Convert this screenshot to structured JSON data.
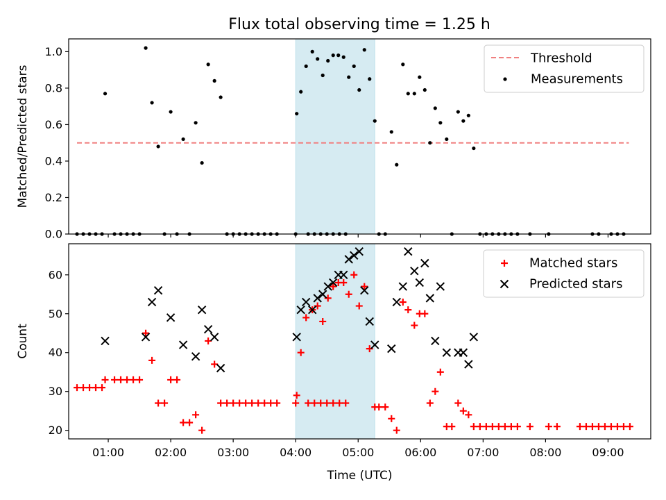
{
  "chart_data": [
    {
      "type": "scatter",
      "title": "Flux total observing time = 1.25 h",
      "xlabel": "",
      "ylabel": "Matched/Predicted stars",
      "xlim": [
        "00:22",
        "09:41"
      ],
      "ylim": [
        0,
        1.07
      ],
      "yticks": [
        "0.0",
        "0.2",
        "0.4",
        "0.6",
        "0.8",
        "1.0"
      ],
      "ytick_values": [
        0,
        0.2,
        0.4,
        0.6,
        0.8,
        1.0
      ],
      "xtick_values": [
        "01:00",
        "02:00",
        "03:00",
        "04:00",
        "05:00",
        "06:00",
        "07:00",
        "08:00",
        "09:00"
      ],
      "shaded_interval": {
        "start": "04:00",
        "end": "05:16",
        "color": "#add8e6"
      },
      "legend": {
        "position": "top-right",
        "entries": [
          "Threshold",
          "Measurements"
        ]
      },
      "series": [
        {
          "name": "Threshold",
          "style": "dashed-line",
          "color": "#f08080",
          "points": [
            [
              "00:30",
              0.5
            ],
            [
              "09:20",
              0.5
            ]
          ]
        },
        {
          "name": "Measurements",
          "style": "dot",
          "color": "#000000",
          "points": [
            [
              "00:30",
              0
            ],
            [
              "00:36",
              0
            ],
            [
              "00:42",
              0
            ],
            [
              "00:48",
              0
            ],
            [
              "00:54",
              0
            ],
            [
              "00:57",
              0.77
            ],
            [
              "01:06",
              0
            ],
            [
              "01:12",
              0
            ],
            [
              "01:18",
              0
            ],
            [
              "01:24",
              0
            ],
            [
              "01:30",
              0
            ],
            [
              "01:36",
              1.02
            ],
            [
              "01:42",
              0.72
            ],
            [
              "01:48",
              0.48
            ],
            [
              "01:54",
              0
            ],
            [
              "02:00",
              0.67
            ],
            [
              "02:06",
              0
            ],
            [
              "02:12",
              0.52
            ],
            [
              "02:18",
              0
            ],
            [
              "02:24",
              0.61
            ],
            [
              "02:30",
              0.39
            ],
            [
              "02:36",
              0.93
            ],
            [
              "02:42",
              0.84
            ],
            [
              "02:48",
              0.75
            ],
            [
              "02:54",
              0
            ],
            [
              "03:00",
              0
            ],
            [
              "03:06",
              0
            ],
            [
              "03:12",
              0
            ],
            [
              "03:18",
              0
            ],
            [
              "03:24",
              0
            ],
            [
              "03:30",
              0
            ],
            [
              "03:36",
              0
            ],
            [
              "03:42",
              0
            ],
            [
              "04:00",
              0
            ],
            [
              "04:12",
              0
            ],
            [
              "04:18",
              0
            ],
            [
              "04:24",
              0
            ],
            [
              "04:30",
              0
            ],
            [
              "04:36",
              0
            ],
            [
              "04:42",
              0
            ],
            [
              "04:48",
              0
            ],
            [
              "04:01",
              0.66
            ],
            [
              "04:05",
              0.78
            ],
            [
              "04:10",
              0.92
            ],
            [
              "04:16",
              1.0
            ],
            [
              "04:21",
              0.96
            ],
            [
              "04:26",
              0.87
            ],
            [
              "04:31",
              0.95
            ],
            [
              "04:36",
              0.98
            ],
            [
              "04:41",
              0.98
            ],
            [
              "04:46",
              0.97
            ],
            [
              "04:51",
              0.86
            ],
            [
              "04:56",
              0.92
            ],
            [
              "05:01",
              0.79
            ],
            [
              "05:06",
              1.01
            ],
            [
              "05:11",
              0.85
            ],
            [
              "05:16",
              0.62
            ],
            [
              "05:20",
              0
            ],
            [
              "05:26",
              0
            ],
            [
              "05:32",
              0.56
            ],
            [
              "05:37",
              0.38
            ],
            [
              "05:43",
              0.93
            ],
            [
              "05:48",
              0.77
            ],
            [
              "05:54",
              0.77
            ],
            [
              "05:59",
              0.86
            ],
            [
              "06:04",
              0.79
            ],
            [
              "06:09",
              0.5
            ],
            [
              "06:14",
              0.69
            ],
            [
              "06:19",
              0.61
            ],
            [
              "06:25",
              0.52
            ],
            [
              "06:30",
              0
            ],
            [
              "06:36",
              0.67
            ],
            [
              "06:41",
              0.62
            ],
            [
              "06:46",
              0.65
            ],
            [
              "06:51",
              0.47
            ],
            [
              "06:57",
              0
            ],
            [
              "07:03",
              0
            ],
            [
              "07:09",
              0
            ],
            [
              "07:15",
              0
            ],
            [
              "07:21",
              0
            ],
            [
              "07:27",
              0
            ],
            [
              "07:33",
              0
            ],
            [
              "07:45",
              0
            ],
            [
              "08:03",
              0
            ],
            [
              "08:45",
              0
            ],
            [
              "08:51",
              0
            ],
            [
              "09:03",
              0
            ],
            [
              "09:09",
              0
            ],
            [
              "09:15",
              0
            ]
          ]
        }
      ]
    },
    {
      "type": "scatter",
      "title": "",
      "xlabel": "Time (UTC)",
      "ylabel": "Count",
      "xlim": [
        "00:22",
        "09:41"
      ],
      "ylim": [
        17.8,
        68
      ],
      "yticks": [
        "20",
        "30",
        "40",
        "50",
        "60"
      ],
      "ytick_values": [
        20,
        30,
        40,
        50,
        60
      ],
      "xticks": [
        "01:00",
        "02:00",
        "03:00",
        "04:00",
        "05:00",
        "06:00",
        "07:00",
        "08:00",
        "09:00"
      ],
      "shaded_interval": {
        "start": "04:00",
        "end": "05:16",
        "color": "#add8e6"
      },
      "legend": {
        "position": "top-right",
        "entries": [
          "Matched stars",
          "Predicted stars"
        ]
      },
      "series": [
        {
          "name": "Matched stars",
          "marker": "plus",
          "color": "#ff0000",
          "points": [
            [
              "00:30",
              31
            ],
            [
              "00:36",
              31
            ],
            [
              "00:42",
              31
            ],
            [
              "00:48",
              31
            ],
            [
              "00:54",
              31
            ],
            [
              "00:57",
              33
            ],
            [
              "01:06",
              33
            ],
            [
              "01:12",
              33
            ],
            [
              "01:18",
              33
            ],
            [
              "01:24",
              33
            ],
            [
              "01:30",
              33
            ],
            [
              "01:36",
              45
            ],
            [
              "01:42",
              38
            ],
            [
              "01:48",
              27
            ],
            [
              "01:54",
              27
            ],
            [
              "02:00",
              33
            ],
            [
              "02:06",
              33
            ],
            [
              "02:12",
              22
            ],
            [
              "02:18",
              22
            ],
            [
              "02:24",
              24
            ],
            [
              "02:30",
              20
            ],
            [
              "02:36",
              43
            ],
            [
              "02:42",
              37
            ],
            [
              "02:48",
              27
            ],
            [
              "02:54",
              27
            ],
            [
              "03:00",
              27
            ],
            [
              "03:06",
              27
            ],
            [
              "03:12",
              27
            ],
            [
              "03:18",
              27
            ],
            [
              "03:24",
              27
            ],
            [
              "03:30",
              27
            ],
            [
              "03:36",
              27
            ],
            [
              "03:42",
              27
            ],
            [
              "04:00",
              27
            ],
            [
              "04:12",
              27
            ],
            [
              "04:18",
              27
            ],
            [
              "04:24",
              27
            ],
            [
              "04:30",
              27
            ],
            [
              "04:36",
              27
            ],
            [
              "04:42",
              27
            ],
            [
              "04:48",
              27
            ],
            [
              "04:01",
              29
            ],
            [
              "04:05",
              40
            ],
            [
              "04:10",
              49
            ],
            [
              "04:16",
              51
            ],
            [
              "04:21",
              52
            ],
            [
              "04:26",
              48
            ],
            [
              "04:31",
              54
            ],
            [
              "04:36",
              57
            ],
            [
              "04:41",
              58
            ],
            [
              "04:46",
              58
            ],
            [
              "04:51",
              55
            ],
            [
              "04:56",
              60
            ],
            [
              "05:01",
              52
            ],
            [
              "05:06",
              57
            ],
            [
              "05:11",
              41
            ],
            [
              "05:16",
              26
            ],
            [
              "05:20",
              26
            ],
            [
              "05:26",
              26
            ],
            [
              "05:32",
              23
            ],
            [
              "05:37",
              20
            ],
            [
              "05:43",
              53
            ],
            [
              "05:48",
              51
            ],
            [
              "05:54",
              47
            ],
            [
              "05:59",
              50
            ],
            [
              "06:04",
              50
            ],
            [
              "06:09",
              27
            ],
            [
              "06:14",
              30
            ],
            [
              "06:19",
              35
            ],
            [
              "06:25",
              21
            ],
            [
              "06:30",
              21
            ],
            [
              "06:36",
              27
            ],
            [
              "06:41",
              25
            ],
            [
              "06:46",
              24
            ],
            [
              "06:51",
              21
            ],
            [
              "06:57",
              21
            ],
            [
              "07:03",
              21
            ],
            [
              "07:09",
              21
            ],
            [
              "07:15",
              21
            ],
            [
              "07:21",
              21
            ],
            [
              "07:27",
              21
            ],
            [
              "07:33",
              21
            ],
            [
              "07:45",
              21
            ],
            [
              "08:03",
              21
            ],
            [
              "08:45",
              21
            ],
            [
              "08:51",
              21
            ],
            [
              "09:03",
              21
            ],
            [
              "09:09",
              21
            ],
            [
              "09:15",
              21
            ],
            [
              "08:11",
              21
            ],
            [
              "08:33",
              21
            ],
            [
              "08:39",
              21
            ],
            [
              "08:57",
              21
            ],
            [
              "09:21",
              21
            ]
          ]
        },
        {
          "name": "Predicted stars",
          "marker": "x",
          "color": "#000000",
          "points": [
            [
              "00:57",
              43
            ],
            [
              "01:36",
              44
            ],
            [
              "01:42",
              53
            ],
            [
              "01:48",
              56
            ],
            [
              "02:00",
              49
            ],
            [
              "02:12",
              42
            ],
            [
              "02:24",
              39
            ],
            [
              "02:30",
              51
            ],
            [
              "02:36",
              46
            ],
            [
              "02:42",
              44
            ],
            [
              "02:48",
              36
            ],
            [
              "04:01",
              44
            ],
            [
              "04:05",
              51
            ],
            [
              "04:10",
              53
            ],
            [
              "04:16",
              51
            ],
            [
              "04:21",
              54
            ],
            [
              "04:26",
              55
            ],
            [
              "04:31",
              57
            ],
            [
              "04:36",
              58
            ],
            [
              "04:41",
              60
            ],
            [
              "04:46",
              60
            ],
            [
              "04:51",
              64
            ],
            [
              "04:56",
              65
            ],
            [
              "05:01",
              66
            ],
            [
              "05:06",
              56
            ],
            [
              "05:11",
              48
            ],
            [
              "05:16",
              42
            ],
            [
              "05:32",
              41
            ],
            [
              "05:37",
              53
            ],
            [
              "05:43",
              57
            ],
            [
              "05:48",
              66
            ],
            [
              "05:54",
              61
            ],
            [
              "05:59",
              58
            ],
            [
              "06:04",
              63
            ],
            [
              "06:09",
              54
            ],
            [
              "06:14",
              43
            ],
            [
              "06:25",
              40
            ],
            [
              "06:36",
              40
            ],
            [
              "06:41",
              40
            ],
            [
              "06:46",
              37
            ],
            [
              "06:51",
              44
            ],
            [
              "06:19",
              57
            ]
          ]
        }
      ]
    }
  ]
}
